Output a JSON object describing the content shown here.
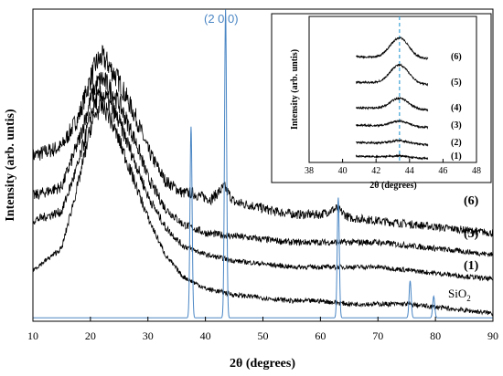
{
  "chart_data": [
    {
      "type": "line",
      "xlabel": "2θ (degrees)",
      "ylabel": "Intensity (arb. untis)",
      "xlim": [
        10,
        90
      ],
      "xticks": [
        "10",
        "20",
        "30",
        "40",
        "50",
        "60",
        "70",
        "80",
        "90"
      ],
      "grid": false,
      "series": [
        {
          "name": "(6)",
          "x": [
            10,
            15,
            18,
            20,
            21,
            22,
            23,
            25,
            28,
            30,
            33,
            36,
            37.6,
            39,
            41,
            43.3,
            45,
            48,
            52,
            56,
            60,
            62.8,
            65,
            70,
            75,
            80,
            85,
            90
          ],
          "y": [
            0.53,
            0.56,
            0.66,
            0.78,
            0.83,
            0.85,
            0.83,
            0.77,
            0.65,
            0.55,
            0.45,
            0.41,
            0.41,
            0.4,
            0.39,
            0.43,
            0.38,
            0.37,
            0.35,
            0.34,
            0.34,
            0.36,
            0.33,
            0.32,
            0.31,
            0.3,
            0.29,
            0.28
          ]
        },
        {
          "name": "(3)",
          "x": [
            10,
            15,
            18,
            20,
            21,
            22,
            23,
            25,
            28,
            30,
            33,
            36,
            40,
            45,
            50,
            55,
            60,
            65,
            70,
            75,
            80,
            85,
            90
          ],
          "y": [
            0.4,
            0.43,
            0.58,
            0.71,
            0.76,
            0.78,
            0.76,
            0.7,
            0.57,
            0.46,
            0.36,
            0.31,
            0.28,
            0.27,
            0.26,
            0.25,
            0.25,
            0.25,
            0.25,
            0.24,
            0.23,
            0.22,
            0.21
          ]
        },
        {
          "name": "(1)",
          "x": [
            10,
            15,
            18,
            20,
            21,
            22,
            23,
            25,
            28,
            30,
            33,
            36,
            40,
            45,
            50,
            55,
            60,
            65,
            70,
            75,
            80,
            85,
            90
          ],
          "y": [
            0.32,
            0.35,
            0.51,
            0.66,
            0.71,
            0.73,
            0.71,
            0.64,
            0.5,
            0.4,
            0.3,
            0.24,
            0.21,
            0.19,
            0.18,
            0.17,
            0.17,
            0.17,
            0.17,
            0.16,
            0.15,
            0.14,
            0.13
          ]
        },
        {
          "name": "SiO2",
          "x": [
            10,
            15,
            18,
            20,
            21,
            22,
            23,
            25,
            28,
            30,
            33,
            36,
            40,
            45,
            50,
            55,
            60,
            65,
            70,
            75,
            80,
            85,
            90
          ],
          "y": [
            0.16,
            0.23,
            0.45,
            0.62,
            0.67,
            0.69,
            0.67,
            0.58,
            0.43,
            0.33,
            0.21,
            0.14,
            0.1,
            0.08,
            0.07,
            0.06,
            0.06,
            0.05,
            0.05,
            0.05,
            0.04,
            0.03,
            0.02
          ]
        }
      ],
      "reference_pattern": {
        "color": "#4a86c4",
        "baseline": 0.005,
        "peaks": [
          {
            "x": 37.5,
            "height": 0.62
          },
          {
            "x": 43.5,
            "height": 1.0
          },
          {
            "x": 63.1,
            "height": 0.39
          },
          {
            "x": 75.6,
            "height": 0.12
          },
          {
            "x": 79.7,
            "height": 0.07
          }
        ],
        "label": "(2 0 0)"
      }
    },
    {
      "type": "line",
      "xlabel": "2θ (degrees)",
      "ylabel": "Intensity (arb. untis)",
      "xlim": [
        38,
        48
      ],
      "xticks": [
        "38",
        "40",
        "42",
        "44",
        "46",
        "48"
      ],
      "grid": false,
      "reference_line": {
        "x": 43.4,
        "color": "#4aa8d8",
        "style": "dashed"
      },
      "series": [
        {
          "name": "(6)",
          "peak_center": 43.4,
          "peak_height": 0.13
        },
        {
          "name": "(5)",
          "peak_center": 43.4,
          "peak_height": 0.12
        },
        {
          "name": "(4)",
          "peak_center": 43.4,
          "peak_height": 0.07
        },
        {
          "name": "(3)",
          "peak_center": 43.4,
          "peak_height": 0.035
        },
        {
          "name": "(2)",
          "peak_center": 43.4,
          "peak_height": 0.02
        },
        {
          "name": "(1)",
          "peak_center": 43.4,
          "peak_height": 0.01
        }
      ]
    }
  ],
  "labels": {
    "series_6": "(6)",
    "series_3": "(3)",
    "series_1": "(1)",
    "reference_sio2_base": "SiO",
    "reference_sio2_sub": "2",
    "peak": "(2 0 0)",
    "main_xlabel": "2θ (degrees)",
    "main_ylabel": "Intensity (arb. untis)",
    "inset_xlabel": "2θ (degrees)",
    "inset_ylabel": "Intensity (arb. untis)"
  },
  "colors": {
    "trace": "#000000",
    "reference": "#4a86c4",
    "inset_dash": "#4aa8d8"
  }
}
